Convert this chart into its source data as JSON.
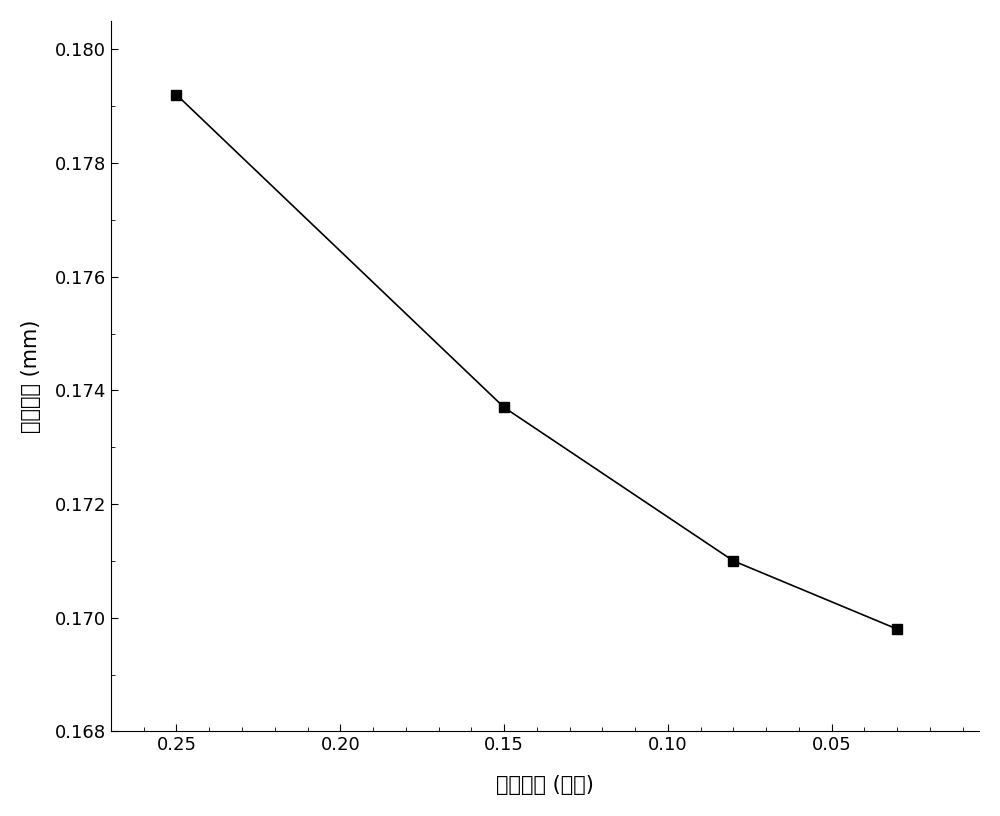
{
  "x": [
    0.25,
    0.15,
    0.08,
    0.03
  ],
  "y": [
    0.1792,
    0.1737,
    0.171,
    0.1698
  ],
  "xlabel": "网格尺寸 (小数)",
  "ylabel": "最大缝宽 (mm)",
  "xlim": [
    0.27,
    0.005
  ],
  "ylim": [
    0.168,
    0.1805
  ],
  "xticks": [
    0.25,
    0.2,
    0.15,
    0.1,
    0.05
  ],
  "yticks": [
    0.168,
    0.17,
    0.172,
    0.174,
    0.176,
    0.178,
    0.18
  ],
  "line_color": "#000000",
  "marker": "s",
  "marker_size": 7,
  "marker_color": "#000000",
  "line_width": 1.2,
  "background_color": "#ffffff",
  "xlabel_fontsize": 15,
  "ylabel_fontsize": 15,
  "tick_fontsize": 13
}
